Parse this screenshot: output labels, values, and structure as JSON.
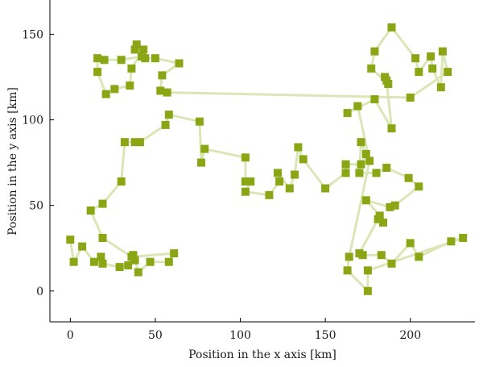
{
  "chart_data": {
    "type": "scatter",
    "xlabel": "Position in the x axis [km]",
    "ylabel": "Position in the y axis [km]",
    "xlim": [
      -12,
      238
    ],
    "ylim": [
      -18,
      170
    ],
    "xticks": [
      0,
      50,
      100,
      150,
      200
    ],
    "yticks": [
      0,
      50,
      100,
      150
    ],
    "grid": false,
    "marker_color": "#8aa614",
    "line_color": "#dbe6b6",
    "series": [
      {
        "points": [
          [
            0,
            30
          ],
          [
            2,
            17
          ],
          [
            7,
            26
          ],
          [
            14,
            17
          ],
          [
            18,
            20
          ],
          [
            19,
            16
          ],
          [
            29,
            14
          ],
          [
            34,
            15
          ],
          [
            37,
            21
          ],
          [
            38,
            18
          ],
          [
            40,
            11
          ],
          [
            47,
            17
          ],
          [
            58,
            17
          ],
          [
            61,
            22
          ],
          [
            36,
            20
          ],
          [
            19,
            31
          ],
          [
            12,
            47
          ],
          [
            19,
            51
          ],
          [
            30,
            64
          ],
          [
            32,
            87
          ],
          [
            38,
            87
          ],
          [
            41,
            87
          ],
          [
            56,
            97
          ],
          [
            58,
            103
          ],
          [
            76,
            99
          ],
          [
            77,
            75
          ],
          [
            79,
            83
          ],
          [
            103,
            78
          ],
          [
            103,
            64
          ],
          [
            106,
            64
          ],
          [
            103,
            58
          ],
          [
            117,
            56
          ],
          [
            123,
            64
          ],
          [
            122,
            69
          ],
          [
            129,
            60
          ],
          [
            132,
            68
          ],
          [
            134,
            84
          ],
          [
            137,
            77
          ],
          [
            150,
            60
          ],
          [
            162,
            69
          ],
          [
            162,
            74
          ],
          [
            171,
            74
          ],
          [
            174,
            80
          ],
          [
            171,
            87
          ],
          [
            170,
            69
          ],
          [
            180,
            69
          ],
          [
            186,
            72
          ],
          [
            199,
            66
          ],
          [
            205,
            61
          ],
          [
            191,
            50
          ],
          [
            188,
            49
          ],
          [
            174,
            53
          ],
          [
            182,
            44
          ],
          [
            184,
            40
          ],
          [
            181,
            42
          ],
          [
            170,
            22
          ],
          [
            172,
            21
          ],
          [
            183,
            21
          ],
          [
            189,
            16
          ],
          [
            200,
            28
          ],
          [
            205,
            20
          ],
          [
            224,
            29
          ],
          [
            231,
            31
          ],
          [
            175,
            12
          ],
          [
            175,
            0
          ],
          [
            163,
            12
          ],
          [
            164,
            20
          ],
          [
            176,
            76
          ],
          [
            169,
            108
          ],
          [
            163,
            104
          ],
          [
            179,
            112
          ],
          [
            189,
            95
          ],
          [
            186,
            123
          ],
          [
            185,
            125
          ],
          [
            187,
            121
          ],
          [
            177,
            130
          ],
          [
            179,
            140
          ],
          [
            189,
            154
          ],
          [
            203,
            136
          ],
          [
            205,
            128
          ],
          [
            212,
            137
          ],
          [
            213,
            130
          ],
          [
            218,
            119
          ],
          [
            219,
            140
          ],
          [
            222,
            128
          ],
          [
            200,
            113
          ],
          [
            57,
            116
          ],
          [
            53,
            117
          ],
          [
            54,
            126
          ],
          [
            64,
            133
          ],
          [
            50,
            136
          ],
          [
            44,
            136
          ],
          [
            39,
            144
          ],
          [
            43,
            141
          ],
          [
            36,
            130
          ],
          [
            35,
            120
          ],
          [
            26,
            118
          ],
          [
            21,
            115
          ],
          [
            16,
            128
          ],
          [
            16,
            136
          ],
          [
            20,
            135
          ],
          [
            30,
            135
          ],
          [
            42,
            137
          ],
          [
            38,
            141
          ]
        ]
      }
    ]
  }
}
